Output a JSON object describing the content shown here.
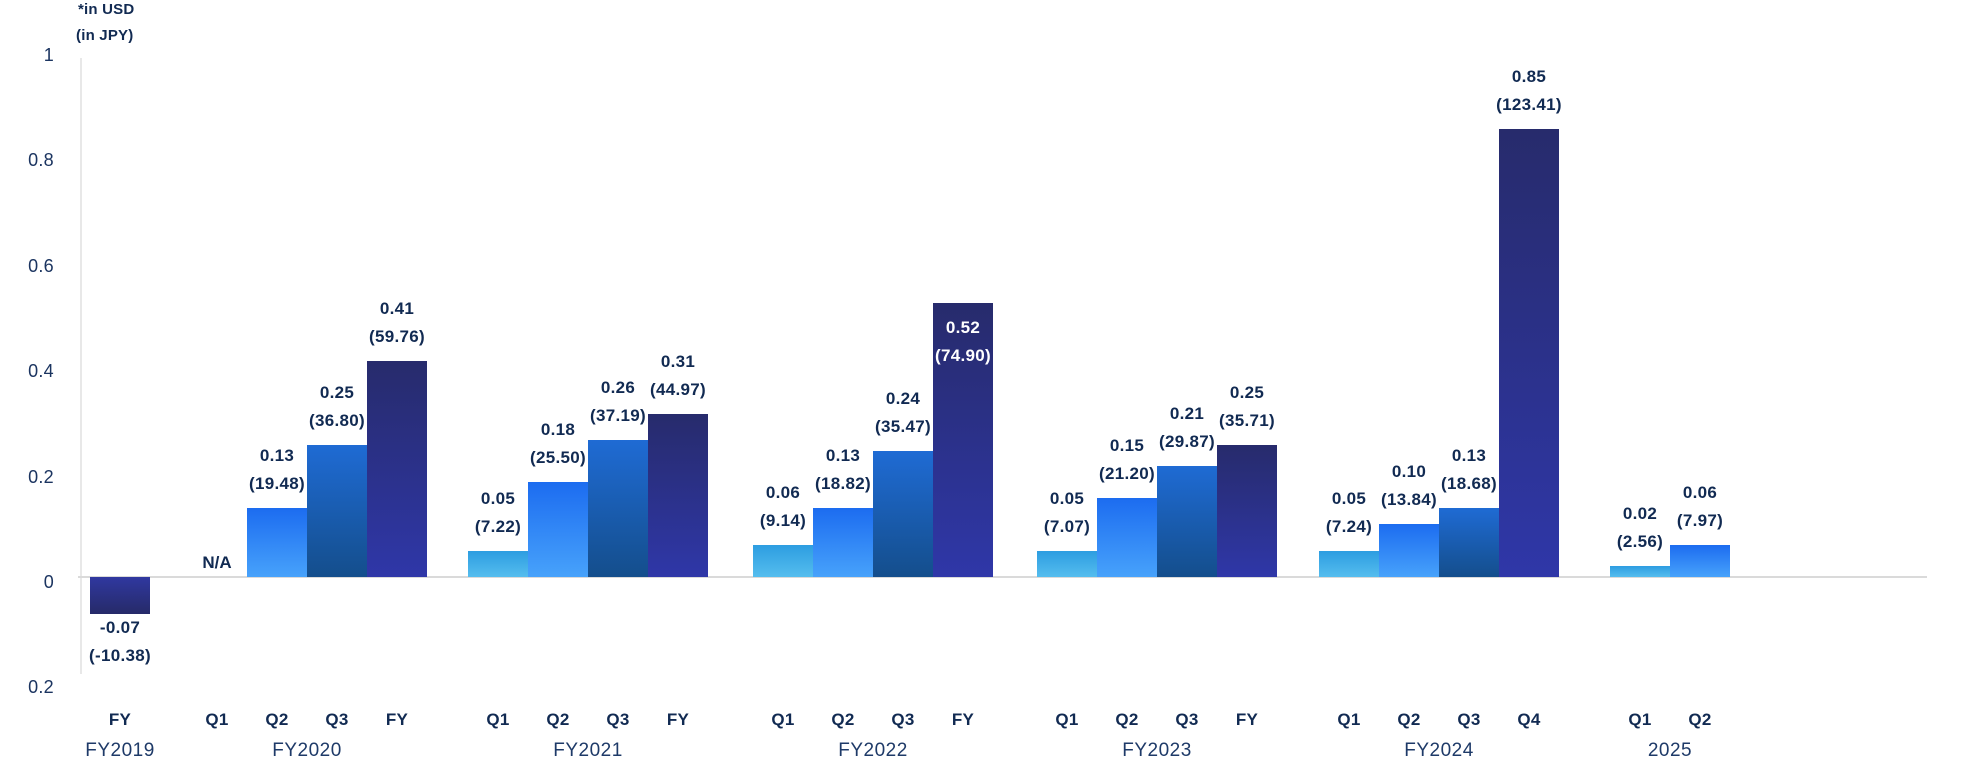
{
  "chart_data": {
    "type": "bar",
    "title": "",
    "unit_note_usd": "*in USD",
    "unit_note_jpy": "(in JPY)",
    "ylim": [
      -0.2,
      1
    ],
    "grid": false,
    "legend": "none",
    "y_ticks": [
      {
        "label": "1",
        "value": 1.0
      },
      {
        "label": "0.8",
        "value": 0.8
      },
      {
        "label": "0.6",
        "value": 0.6
      },
      {
        "label": "0.4",
        "value": 0.4
      },
      {
        "label": "0.2",
        "value": 0.2
      },
      {
        "label": "0",
        "value": 0.0
      },
      {
        "label": "0.2",
        "value": -0.2
      }
    ],
    "groups": [
      {
        "year": "FY2019",
        "bars": [
          {
            "period": "FY",
            "usd": -0.07,
            "jpy": -10.38,
            "usd_label": "-0.07",
            "jpy_label": "(-10.38)",
            "style": "fy"
          }
        ]
      },
      {
        "year": "FY2020",
        "bars": [
          {
            "period": "Q1",
            "na": true,
            "na_label": "N/A"
          },
          {
            "period": "Q2",
            "usd": 0.13,
            "jpy": 19.48,
            "usd_label": "0.13",
            "jpy_label": "(19.48)",
            "style": "q2"
          },
          {
            "period": "Q3",
            "usd": 0.25,
            "jpy": 36.8,
            "usd_label": "0.25",
            "jpy_label": "(36.80)",
            "style": "q3"
          },
          {
            "period": "FY",
            "usd": 0.41,
            "jpy": 59.76,
            "usd_label": "0.41",
            "jpy_label": "(59.76)",
            "style": "fy"
          }
        ]
      },
      {
        "year": "FY2021",
        "bars": [
          {
            "period": "Q1",
            "usd": 0.05,
            "jpy": 7.22,
            "usd_label": "0.05",
            "jpy_label": "(7.22)",
            "style": "q1"
          },
          {
            "period": "Q2",
            "usd": 0.18,
            "jpy": 25.5,
            "usd_label": "0.18",
            "jpy_label": "(25.50)",
            "style": "q2"
          },
          {
            "period": "Q3",
            "usd": 0.26,
            "jpy": 37.19,
            "usd_label": "0.26",
            "jpy_label": "(37.19)",
            "style": "q3"
          },
          {
            "period": "FY",
            "usd": 0.31,
            "jpy": 44.97,
            "usd_label": "0.31",
            "jpy_label": "(44.97)",
            "style": "fy"
          }
        ]
      },
      {
        "year": "FY2022",
        "bars": [
          {
            "period": "Q1",
            "usd": 0.06,
            "jpy": 9.14,
            "usd_label": "0.06",
            "jpy_label": "(9.14)",
            "style": "q1"
          },
          {
            "period": "Q2",
            "usd": 0.13,
            "jpy": 18.82,
            "usd_label": "0.13",
            "jpy_label": "(18.82)",
            "style": "q2"
          },
          {
            "period": "Q3",
            "usd": 0.24,
            "jpy": 35.47,
            "usd_label": "0.24",
            "jpy_label": "(35.47)",
            "style": "q3"
          },
          {
            "period": "FY",
            "usd": 0.52,
            "jpy": 74.9,
            "usd_label": "0.52",
            "jpy_label": "(74.90)",
            "style": "fy",
            "label_inside": true
          }
        ]
      },
      {
        "year": "FY2023",
        "bars": [
          {
            "period": "Q1",
            "usd": 0.05,
            "jpy": 7.07,
            "usd_label": "0.05",
            "jpy_label": "(7.07)",
            "style": "q1"
          },
          {
            "period": "Q2",
            "usd": 0.15,
            "jpy": 21.2,
            "usd_label": "0.15",
            "jpy_label": "(21.20)",
            "style": "q2"
          },
          {
            "period": "Q3",
            "usd": 0.21,
            "jpy": 29.87,
            "usd_label": "0.21",
            "jpy_label": "(29.87)",
            "style": "q3"
          },
          {
            "period": "FY",
            "usd": 0.25,
            "jpy": 35.71,
            "usd_label": "0.25",
            "jpy_label": "(35.71)",
            "style": "fy"
          }
        ]
      },
      {
        "year": "FY2024",
        "bars": [
          {
            "period": "Q1",
            "usd": 0.05,
            "jpy": 7.24,
            "usd_label": "0.05",
            "jpy_label": "(7.24)",
            "style": "q1"
          },
          {
            "period": "Q2",
            "usd": 0.1,
            "jpy": 13.84,
            "usd_label": "0.10",
            "jpy_label": "(13.84)",
            "style": "q2"
          },
          {
            "period": "Q3",
            "usd": 0.13,
            "jpy": 18.68,
            "usd_label": "0.13",
            "jpy_label": "(18.68)",
            "style": "q3"
          },
          {
            "period": "Q4",
            "usd": 0.85,
            "jpy": 123.41,
            "usd_label": "0.85",
            "jpy_label": "(123.41)",
            "style": "fy"
          }
        ]
      },
      {
        "year": "2025",
        "bars": [
          {
            "period": "Q1",
            "usd": 0.02,
            "jpy": 2.56,
            "usd_label": "0.02",
            "jpy_label": "(2.56)",
            "style": "q1"
          },
          {
            "period": "Q2",
            "usd": 0.06,
            "jpy": 7.97,
            "usd_label": "0.06",
            "jpy_label": "(7.97)",
            "style": "q2"
          }
        ]
      }
    ],
    "colors": {
      "q1_top": "#2d9de1",
      "q1_bottom": "#55bdee",
      "q2_top": "#1c6cf0",
      "q2_bottom": "#47a2fb",
      "q3_top": "#1f6bd4",
      "q3_bottom": "#144e8c",
      "fy_top": "#272b6c",
      "fy_bottom": "#2f37a8",
      "text_navy": "#112a52",
      "axis_line": "#dadada"
    }
  }
}
